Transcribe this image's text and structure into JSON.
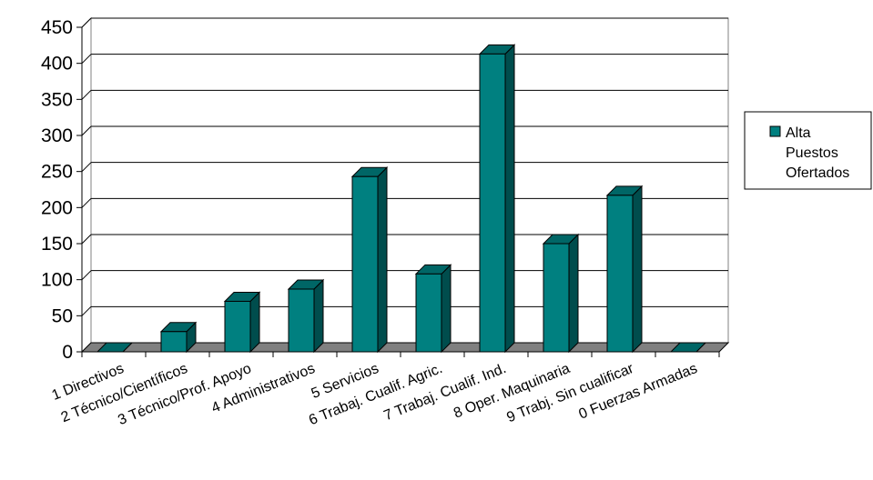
{
  "chart_data": {
    "type": "bar",
    "categories": [
      "1 Directivos",
      "2 Técnico/Científicos",
      "3 Técnico/Prof. Apoyo",
      "4 Administrativos",
      "5 Servicios",
      "6 Trabaj. Cualif. Agric.",
      "7 Trabaj. Cualif. Ind.",
      "8 Oper. Maquinaria",
      "9 Trabj. Sin cualificar",
      "0 Fuerzas Armadas"
    ],
    "series": [
      {
        "name": "Alta Puestos Ofertados",
        "values": [
          0,
          28,
          70,
          87,
          243,
          108,
          413,
          150,
          217,
          0
        ]
      }
    ],
    "legend_lines": [
      "Alta",
      "Puestos",
      "Ofertados"
    ],
    "yticks": [
      "0",
      "50",
      "100",
      "150",
      "200",
      "250",
      "300",
      "350",
      "400",
      "450"
    ],
    "ylim": [
      0,
      450
    ],
    "grid": true,
    "legend_position": "right",
    "colors": {
      "bar_front": "#008080",
      "bar_top": "#006666",
      "bar_side": "#004d4d",
      "floor": "#808080",
      "wall": "#ffffff",
      "gridline": "#000000"
    }
  }
}
